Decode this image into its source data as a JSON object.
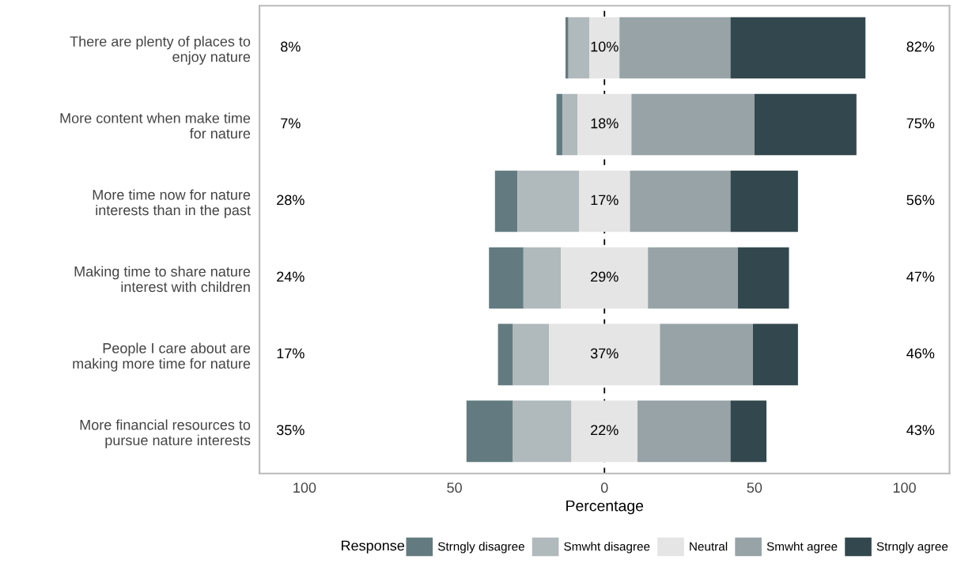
{
  "chart_data": {
    "type": "bar",
    "orientation": "horizontal",
    "xlabel": "Percentage",
    "legend_title": "Response",
    "legend": "bottom",
    "categories": [
      "There are plenty of places to\nenjoy nature",
      "More content when make time\nfor nature",
      "More time now for nature\ninterests than in the past",
      "Making time to share nature\ninterest with children",
      "People I care about are\nmaking more time for nature",
      "More financial resources to\npursue nature interests"
    ],
    "series": [
      {
        "name": "Strngly disagree",
        "color": "#637b80",
        "base": [
          -13,
          -16,
          -36.5,
          -38.5,
          -35.5,
          -46
        ],
        "values": [
          1,
          2,
          7.5,
          11.5,
          5,
          15.5
        ]
      },
      {
        "name": "Smwht disagree",
        "color": "#b0b9bb",
        "base": [
          -12,
          -14,
          -29,
          -27,
          -30.5,
          -30.5
        ],
        "values": [
          7,
          5,
          20.5,
          12.5,
          12,
          19.5
        ]
      },
      {
        "name": "Neutral",
        "color": "#e5e5e5",
        "base": [
          -5,
          -9,
          -8.5,
          -14.5,
          -18.5,
          -11
        ],
        "values": [
          10,
          18,
          17,
          29,
          37,
          22
        ]
      },
      {
        "name": "Smwht agree",
        "color": "#97a3a7",
        "base": [
          5,
          9,
          8.5,
          14.5,
          18.5,
          11
        ],
        "values": [
          37,
          41,
          33.5,
          30,
          31,
          31
        ]
      },
      {
        "name": "Strngly agree",
        "color": "#33474e",
        "base": [
          42,
          50,
          42,
          44.5,
          49.5,
          42
        ],
        "values": [
          45,
          34,
          22.5,
          17,
          15,
          12
        ]
      }
    ],
    "annotations": [
      "8%",
      "10%",
      "82%",
      "7%",
      "18%",
      "75%",
      "28%",
      "17%",
      "56%",
      "24%",
      "29%",
      "47%",
      "17%",
      "37%",
      "46%",
      "35%",
      "22%",
      "43%"
    ],
    "xlim": [
      -115,
      115
    ],
    "xticks": [
      {
        "value": -100,
        "label": "100"
      },
      {
        "value": -50,
        "label": "50"
      },
      0,
      50,
      100
    ],
    "ref_lines": [
      {
        "axis": "x",
        "value": 0,
        "label": null,
        "color": "#000000",
        "line_style": "dashed"
      }
    ]
  }
}
